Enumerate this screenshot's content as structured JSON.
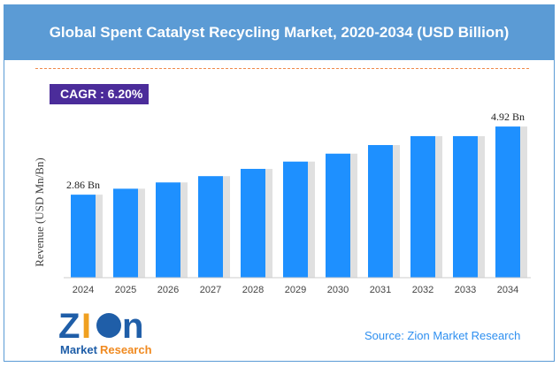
{
  "chart_data": {
    "type": "bar",
    "title": "Global Spent Catalyst Recycling Market, 2020-2034 (USD Billion)",
    "ylabel": "Revenue (USD Mn/Bn)",
    "xlabel": "",
    "categories": [
      "2024",
      "2025",
      "2026",
      "2027",
      "2028",
      "2029",
      "2030",
      "2031",
      "2032",
      "2033",
      "2034"
    ],
    "values": [
      2.86,
      3.04,
      3.23,
      3.42,
      3.64,
      3.86,
      4.1,
      4.36,
      4.63,
      4.92,
      4.92
    ],
    "data_labels": {
      "first": "2.86 Bn",
      "last": "4.92 Bn"
    },
    "grid": false,
    "bar_color": "#1e90ff"
  },
  "cagr": "CAGR : 6.20%",
  "source": "Source: Zion Market Research",
  "logo": {
    "text": "Zion",
    "sub1": "Market",
    "sub2": "Research"
  }
}
